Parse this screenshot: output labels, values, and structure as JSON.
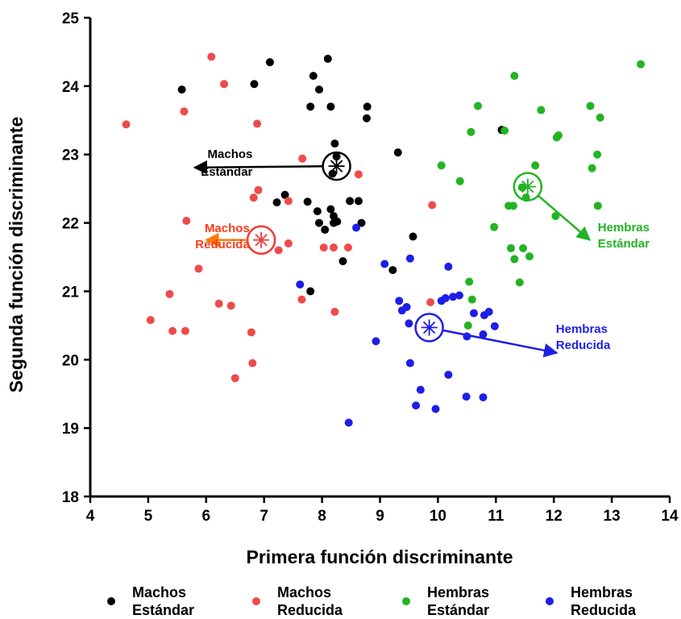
{
  "chart_data": {
    "type": "scatter",
    "title": "",
    "xlabel": "Primera función discriminante",
    "ylabel": "Segunda función discriminante",
    "xlim": [
      4,
      14
    ],
    "ylim": [
      18,
      25
    ],
    "xticks": [
      "4",
      "5",
      "6",
      "7",
      "8",
      "9",
      "10",
      "11",
      "12",
      "13",
      "14"
    ],
    "yticks": [
      "18",
      "19",
      "20",
      "21",
      "22",
      "23",
      "24",
      "25"
    ],
    "grid": false,
    "legend_position": "bottom",
    "series": [
      {
        "legend_line1": "Machos",
        "legend_line2": "Estándar",
        "color": "#000000",
        "points": [
          [
            5.58,
            23.95
          ],
          [
            6.83,
            24.03
          ],
          [
            7.1,
            24.35
          ],
          [
            7.85,
            24.15
          ],
          [
            7.95,
            23.95
          ],
          [
            8.1,
            24.4
          ],
          [
            7.8,
            23.7
          ],
          [
            8.15,
            23.7
          ],
          [
            8.78,
            23.7
          ],
          [
            8.77,
            23.53
          ],
          [
            8.22,
            23.16
          ],
          [
            9.31,
            23.03
          ],
          [
            8.18,
            22.72
          ],
          [
            8.25,
            22.97
          ],
          [
            7.36,
            22.41
          ],
          [
            7.22,
            22.3
          ],
          [
            7.75,
            22.31
          ],
          [
            7.92,
            22.17
          ],
          [
            8.15,
            22.2
          ],
          [
            8.2,
            22.1
          ],
          [
            8.48,
            22.32
          ],
          [
            8.63,
            22.32
          ],
          [
            7.95,
            22.0
          ],
          [
            8.2,
            22.0
          ],
          [
            8.26,
            22.02
          ],
          [
            8.68,
            22.0
          ],
          [
            8.05,
            21.9
          ],
          [
            9.57,
            21.8
          ],
          [
            8.36,
            21.44
          ],
          [
            9.22,
            21.31
          ],
          [
            7.8,
            21.0
          ],
          [
            11.1,
            23.36
          ]
        ]
      },
      {
        "legend_line1": "Machos",
        "legend_line2": "Reducida",
        "color": "#ef4a4a",
        "points": [
          [
            6.09,
            24.43
          ],
          [
            6.31,
            24.03
          ],
          [
            5.62,
            23.63
          ],
          [
            4.62,
            23.44
          ],
          [
            6.88,
            23.45
          ],
          [
            7.66,
            22.94
          ],
          [
            8.63,
            22.71
          ],
          [
            6.9,
            22.48
          ],
          [
            6.82,
            22.37
          ],
          [
            7.42,
            22.32
          ],
          [
            5.66,
            22.03
          ],
          [
            7.42,
            21.7
          ],
          [
            7.25,
            21.6
          ],
          [
            8.03,
            21.64
          ],
          [
            8.2,
            21.64
          ],
          [
            8.45,
            21.64
          ],
          [
            5.87,
            21.33
          ],
          [
            9.9,
            22.26
          ],
          [
            5.37,
            20.96
          ],
          [
            6.22,
            20.82
          ],
          [
            6.43,
            20.79
          ],
          [
            7.65,
            20.88
          ],
          [
            8.22,
            20.7
          ],
          [
            5.04,
            20.58
          ],
          [
            5.42,
            20.42
          ],
          [
            5.64,
            20.42
          ],
          [
            6.78,
            20.4
          ],
          [
            6.8,
            19.95
          ],
          [
            6.5,
            19.73
          ],
          [
            9.87,
            20.84
          ]
        ]
      },
      {
        "legend_line1": "Hembras",
        "legend_line2": "Estándar",
        "color": "#22b422",
        "points": [
          [
            11.32,
            24.15
          ],
          [
            13.5,
            24.32
          ],
          [
            10.69,
            23.71
          ],
          [
            11.78,
            23.65
          ],
          [
            12.63,
            23.71
          ],
          [
            12.8,
            23.54
          ],
          [
            10.57,
            23.33
          ],
          [
            11.15,
            23.35
          ],
          [
            12.05,
            23.25
          ],
          [
            12.08,
            23.28
          ],
          [
            12.75,
            23.0
          ],
          [
            10.06,
            22.84
          ],
          [
            11.68,
            22.84
          ],
          [
            12.66,
            22.8
          ],
          [
            10.38,
            22.61
          ],
          [
            11.45,
            22.52
          ],
          [
            11.52,
            22.37
          ],
          [
            11.22,
            22.25
          ],
          [
            11.3,
            22.25
          ],
          [
            12.76,
            22.25
          ],
          [
            12.03,
            22.1
          ],
          [
            10.97,
            21.94
          ],
          [
            11.26,
            21.63
          ],
          [
            11.47,
            21.63
          ],
          [
            11.32,
            21.47
          ],
          [
            11.58,
            21.51
          ],
          [
            10.54,
            21.14
          ],
          [
            11.41,
            21.13
          ],
          [
            10.59,
            20.88
          ],
          [
            10.52,
            20.5
          ]
        ]
      },
      {
        "legend_line1": "Hembras",
        "legend_line2": "Reducida",
        "color": "#1e1ee6",
        "points": [
          [
            8.59,
            21.93
          ],
          [
            7.62,
            21.1
          ],
          [
            9.08,
            21.4
          ],
          [
            9.52,
            21.48
          ],
          [
            10.18,
            21.36
          ],
          [
            9.33,
            20.86
          ],
          [
            9.38,
            20.72
          ],
          [
            9.46,
            20.77
          ],
          [
            9.5,
            20.53
          ],
          [
            10.06,
            20.86
          ],
          [
            10.13,
            20.9
          ],
          [
            10.26,
            20.92
          ],
          [
            10.37,
            20.94
          ],
          [
            10.62,
            20.68
          ],
          [
            10.8,
            20.65
          ],
          [
            10.88,
            20.7
          ],
          [
            10.98,
            20.49
          ],
          [
            10.78,
            20.37
          ],
          [
            10.5,
            20.34
          ],
          [
            8.93,
            20.27
          ],
          [
            9.52,
            19.95
          ],
          [
            10.18,
            19.78
          ],
          [
            9.7,
            19.56
          ],
          [
            10.49,
            19.46
          ],
          [
            10.78,
            19.45
          ],
          [
            9.62,
            19.33
          ],
          [
            9.96,
            19.28
          ],
          [
            8.46,
            19.08
          ]
        ]
      }
    ],
    "centroids": [
      {
        "label_line1": "Machos",
        "label_line2": "Estándar",
        "color": "#000000",
        "x": 8.25,
        "y": 22.83,
        "arrow_to": [
          5.8,
          22.81
        ],
        "label_anchor": "end"
      },
      {
        "label_line1": "Machos",
        "label_line2": "Reducida",
        "color": "#ef3a3a",
        "arrow_color": "#ff7a00",
        "x": 6.95,
        "y": 21.75,
        "arrow_to": [
          6.0,
          21.75
        ],
        "label_anchor": "end"
      },
      {
        "label_line1": "Hembras",
        "label_line2": "Estándar",
        "color": "#22b422",
        "x": 11.55,
        "y": 22.53,
        "arrow_to": [
          12.62,
          21.75
        ],
        "label_anchor": "start"
      },
      {
        "label_line1": "Hembras",
        "label_line2": "Reducida",
        "color": "#1e1ee6",
        "x": 9.85,
        "y": 20.47,
        "arrow_to": [
          12.05,
          20.1
        ],
        "label_anchor": "start"
      }
    ]
  }
}
